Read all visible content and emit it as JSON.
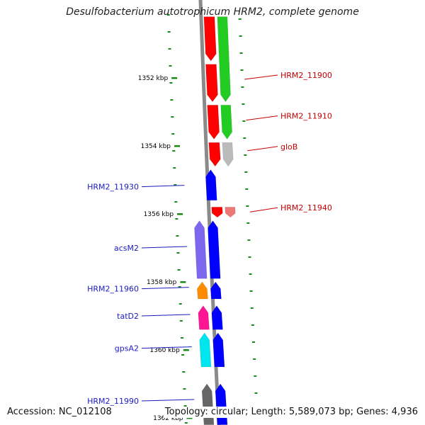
{
  "title": "Desulfobacterium autotrophicum HRM2, complete genome",
  "footer": {
    "accession": "Accession: NC_012108",
    "topology": "Topology: circular; Length: 5,589,073 bp; Genes: 4,936"
  },
  "ticks": [
    {
      "label": "1352 kbp",
      "kbp": 1352
    },
    {
      "label": "1354 kbp",
      "kbp": 1354
    },
    {
      "label": "1356 kbp",
      "kbp": 1356
    },
    {
      "label": "1358 kbp",
      "kbp": 1358
    },
    {
      "label": "1360 kbp",
      "kbp": 1360
    },
    {
      "label": "1362 kbp",
      "kbp": 1362
    }
  ],
  "genes": [
    {
      "track": "red-a",
      "start_kbp": 1350.2,
      "end_kbp": 1351.5,
      "color": "#ff0000",
      "strand": "-"
    },
    {
      "track": "red-a",
      "start_kbp": 1351.6,
      "end_kbp": 1352.7,
      "color": "#ff0000",
      "strand": "-"
    },
    {
      "track": "red-a",
      "start_kbp": 1352.8,
      "end_kbp": 1353.8,
      "color": "#ff0000",
      "strand": "-"
    },
    {
      "track": "red-a",
      "start_kbp": 1353.9,
      "end_kbp": 1354.6,
      "color": "#ff0000",
      "strand": "-"
    },
    {
      "track": "red-a",
      "start_kbp": 1355.8,
      "end_kbp": 1356.1,
      "color": "#ff0000",
      "strand": "-"
    },
    {
      "track": "green",
      "start_kbp": 1350.2,
      "end_kbp": 1352.7,
      "color": "#22cc22",
      "strand": "-"
    },
    {
      "track": "green",
      "start_kbp": 1352.8,
      "end_kbp": 1353.8,
      "color": "#22cc22",
      "strand": "-"
    },
    {
      "track": "green",
      "start_kbp": 1353.9,
      "end_kbp": 1354.6,
      "color": "#bbbbbb",
      "strand": "-"
    },
    {
      "track": "green",
      "start_kbp": 1355.8,
      "end_kbp": 1356.1,
      "color": "#ee7777",
      "strand": "-"
    },
    {
      "track": "blue-a",
      "start_kbp": 1354.7,
      "end_kbp": 1355.6,
      "color": "#0000ff",
      "strand": "+"
    },
    {
      "track": "blue-a",
      "start_kbp": 1356.2,
      "end_kbp": 1357.9,
      "color": "#0000ff",
      "strand": "+"
    },
    {
      "track": "blue-a",
      "start_kbp": 1358.0,
      "end_kbp": 1358.5,
      "color": "#0000ff",
      "strand": "+"
    },
    {
      "track": "blue-a",
      "start_kbp": 1358.7,
      "end_kbp": 1359.4,
      "color": "#0000ff",
      "strand": "+"
    },
    {
      "track": "blue-a",
      "start_kbp": 1359.5,
      "end_kbp": 1360.5,
      "color": "#0000ff",
      "strand": "+"
    },
    {
      "track": "blue-a",
      "start_kbp": 1361.0,
      "end_kbp": 1362.2,
      "color": "#0000ff",
      "strand": "+"
    },
    {
      "track": "blue-b",
      "start_kbp": 1356.2,
      "end_kbp": 1357.9,
      "color": "#7b68ee",
      "strand": "+"
    },
    {
      "track": "blue-b",
      "start_kbp": 1358.0,
      "end_kbp": 1358.5,
      "color": "#ff8c00",
      "strand": "+"
    },
    {
      "track": "blue-b",
      "start_kbp": 1358.7,
      "end_kbp": 1359.4,
      "color": "#ff1493",
      "strand": "+"
    },
    {
      "track": "blue-b",
      "start_kbp": 1359.5,
      "end_kbp": 1360.5,
      "color": "#00e5ee",
      "strand": "+"
    },
    {
      "track": "blue-b",
      "start_kbp": 1361.0,
      "end_kbp": 1362.2,
      "color": "#666666",
      "strand": "+"
    }
  ],
  "labels_left": [
    {
      "text": "HRM2_11930",
      "kbp": 1355.2
    },
    {
      "text": "acsM2",
      "kbp": 1357.0
    },
    {
      "text": "HRM2_11960",
      "kbp": 1358.2
    },
    {
      "text": "tatD2",
      "kbp": 1359.0
    },
    {
      "text": "gpsA2",
      "kbp": 1359.95
    },
    {
      "text": "HRM2_11990",
      "kbp": 1361.5
    }
  ],
  "labels_right": [
    {
      "text": "HRM2_11900",
      "kbp": 1352.0
    },
    {
      "text": "HRM2_11910",
      "kbp": 1353.2
    },
    {
      "text": "gloB",
      "kbp": 1354.1
    },
    {
      "text": "HRM2_11940",
      "kbp": 1355.9
    }
  ]
}
